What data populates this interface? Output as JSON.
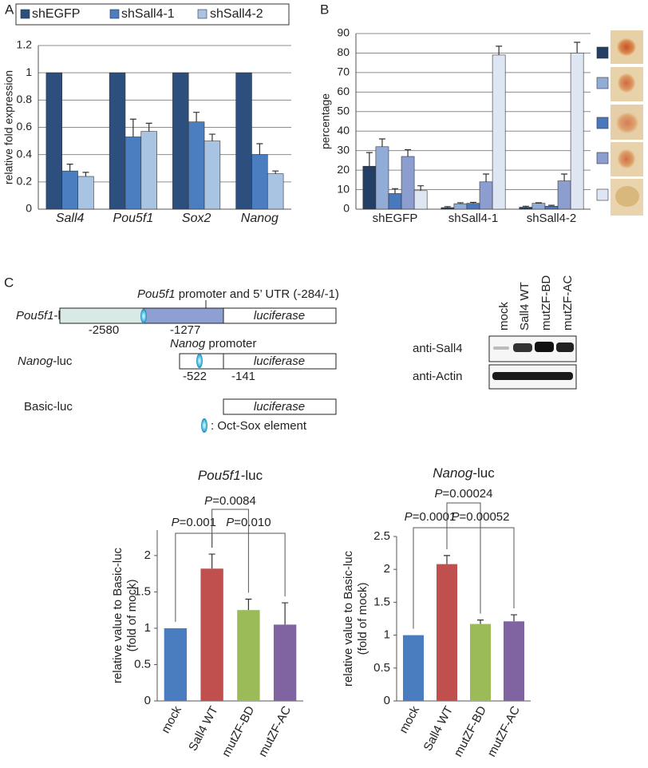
{
  "panel_labels": [
    "A",
    "B",
    "C"
  ],
  "chart_data": [
    {
      "type": "bar",
      "ylabel": "relative fold expression",
      "categories": [
        "Sall4",
        "Pou5f1",
        "Sox2",
        "Nanog"
      ],
      "category_style": "italic",
      "series": [
        {
          "name": "shEGFP",
          "color": "#2c4f7e",
          "values": [
            1,
            1,
            1,
            1
          ]
        },
        {
          "name": "shSall4-1",
          "color": "#4a7ec0",
          "values": [
            0.28,
            0.53,
            0.64,
            0.4
          ],
          "errors": [
            0.05,
            0.13,
            0.07,
            0.08
          ]
        },
        {
          "name": "shSall4-2",
          "color": "#a9c3e3",
          "values": [
            0.24,
            0.57,
            0.5,
            0.26
          ],
          "errors": [
            0.03,
            0.06,
            0.05,
            0.02
          ]
        }
      ],
      "ylim": [
        0,
        1.2
      ],
      "yticks": [
        0,
        0.2,
        0.4,
        0.6,
        0.8,
        1,
        1.2
      ],
      "grid": true,
      "legend": "top"
    },
    {
      "type": "bar",
      "ylabel": "percentage",
      "categories": [
        "shEGFP",
        "shSall4-1",
        "shSall4-2"
      ],
      "series": [
        {
          "color": "#243f66",
          "values": [
            22,
            0.8,
            1
          ],
          "errors": [
            7,
            0.5,
            0.5
          ]
        },
        {
          "color": "#92acd8",
          "values": [
            32,
            2.8,
            3
          ],
          "errors": [
            4,
            0.5,
            0.3
          ]
        },
        {
          "color": "#4978bd",
          "values": [
            8,
            3,
            1.5
          ],
          "errors": [
            2.5,
            0.5,
            0.5
          ]
        },
        {
          "color": "#8c9dd0",
          "values": [
            27,
            14,
            14.5
          ],
          "errors": [
            3.5,
            4,
            3.5
          ]
        },
        {
          "color": "#dde6f2",
          "values": [
            9.5,
            79,
            80
          ],
          "errors": [
            2.5,
            4.5,
            5.5
          ]
        }
      ],
      "ylim": [
        0,
        90
      ],
      "yticks": [
        0,
        10,
        20,
        30,
        40,
        50,
        60,
        70,
        80,
        90
      ],
      "grid": true,
      "legend": "right"
    },
    {
      "type": "bar",
      "title_parts": [
        {
          "text": "Pou5f1",
          "italic": true
        },
        {
          "text": "-luc"
        }
      ],
      "ylabel": [
        "relative value to Basic-luc",
        "(fold of mock)"
      ],
      "categories": [
        "mock",
        "Sall4 WT",
        "mutZF-BD",
        "mutZF-AC"
      ],
      "values": [
        1,
        1.82,
        1.25,
        1.05
      ],
      "errors": [
        null,
        0.2,
        0.15,
        0.3
      ],
      "colors": [
        "#4a7cc0",
        "#c0504d",
        "#9bbb59",
        "#8064a2"
      ],
      "ylim": [
        0,
        2.35
      ],
      "yticks": [
        0,
        0.5,
        1,
        1.5,
        2
      ],
      "grid": false,
      "annotations": [
        {
          "prefix": "P",
          "text": "=0.001",
          "between": [
            0,
            1
          ]
        },
        {
          "prefix": "P",
          "text": "=0.0084",
          "between": [
            1,
            2
          ]
        },
        {
          "prefix": "P",
          "text": "=0.010",
          "between": [
            1,
            3
          ]
        }
      ]
    },
    {
      "type": "bar",
      "title_parts": [
        {
          "text": "Nanog",
          "italic": true
        },
        {
          "text": "-luc"
        }
      ],
      "ylabel": [
        "relative value to Basic-luc",
        "(fold of mock)"
      ],
      "categories": [
        "mock",
        "Sall4 WT",
        "mutZF-BD",
        "mutZF-AC"
      ],
      "values": [
        1,
        2.08,
        1.17,
        1.21
      ],
      "errors": [
        null,
        0.13,
        0.06,
        0.1
      ],
      "colors": [
        "#4a7cc0",
        "#c0504d",
        "#9bbb59",
        "#8064a2"
      ],
      "ylim": [
        0,
        2.5
      ],
      "yticks": [
        0,
        0.5,
        1,
        1.5,
        2,
        2.5
      ],
      "grid": false,
      "annotations": [
        {
          "prefix": "P",
          "text": "=0.0001",
          "between": [
            0,
            1
          ]
        },
        {
          "prefix": "P",
          "text": "=0.00024",
          "between": [
            1,
            2
          ]
        },
        {
          "prefix": "P",
          "text": "=0.00052",
          "between": [
            1,
            3
          ]
        }
      ]
    }
  ],
  "diagram": {
    "constructs": [
      {
        "label": [
          {
            "text": "Pou5f1",
            "italic": true
          },
          {
            "text": "-luc"
          }
        ],
        "reporter": "luciferase",
        "positions": [
          "-2580",
          "-1277"
        ],
        "note": [
          {
            "text": "Pou5f1",
            "italic": true
          },
          {
            "text": " promoter and 5’ UTR (-284/-1)"
          }
        ]
      },
      {
        "label": [
          {
            "text": "Nanog",
            "italic": true
          },
          {
            "text": "-luc"
          }
        ],
        "reporter": "luciferase",
        "positions": [
          "-522",
          "-141"
        ],
        "note": [
          {
            "text": "Nanog",
            "italic": true
          },
          {
            "text": " promoter"
          }
        ]
      },
      {
        "label": [
          {
            "text": "Basic-luc"
          }
        ],
        "reporter": "luciferase"
      }
    ],
    "legend": ": Oct-Sox element"
  },
  "western_blot": {
    "lanes": [
      "mock",
      "Sall4 WT",
      "mutZF-BD",
      "mutZF-AC"
    ],
    "rows": [
      "anti-Sall4",
      "anti-Actin"
    ]
  }
}
